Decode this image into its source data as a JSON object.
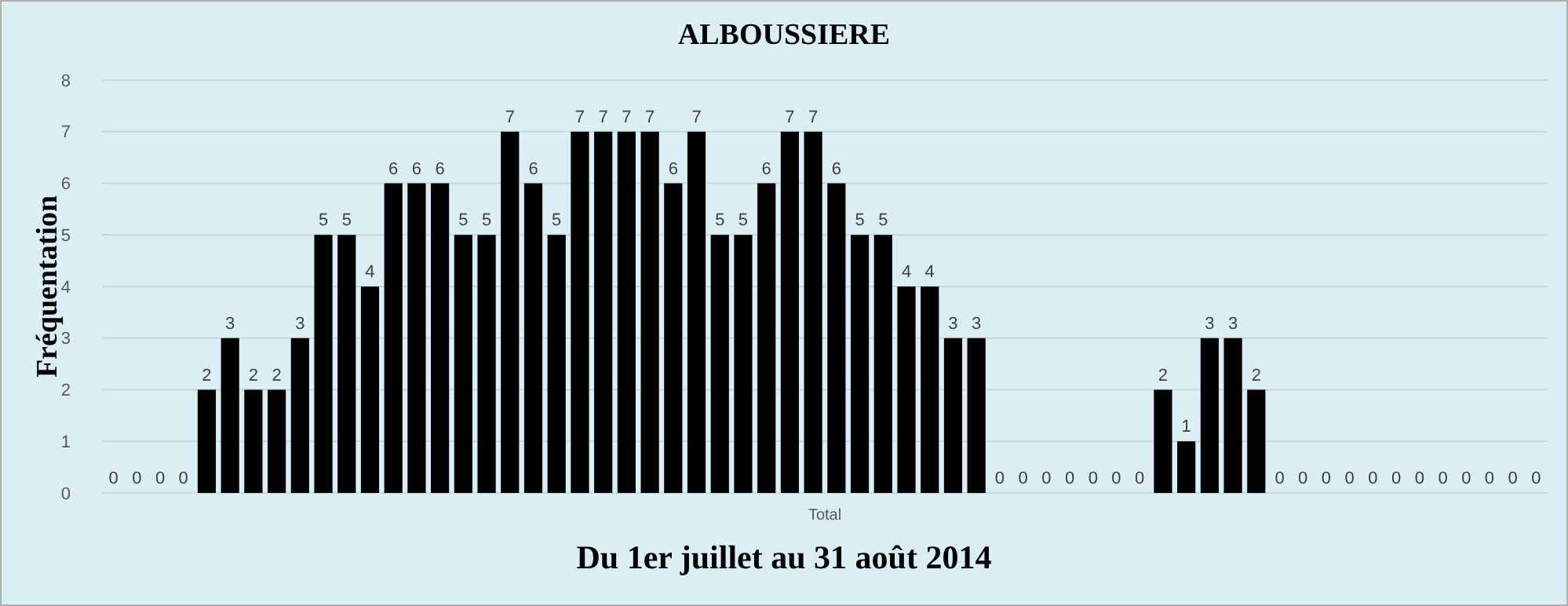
{
  "chart_data": {
    "type": "bar",
    "title": "ALBOUSSIERE",
    "xlabel": "Du 1er juillet au 31 août 2014",
    "ylabel": "Fréquentation",
    "categories": [
      null,
      null,
      null,
      null,
      null,
      null,
      null,
      null,
      null,
      null,
      null,
      null,
      null,
      null,
      null,
      null,
      null,
      null,
      null,
      null,
      null,
      null,
      null,
      null,
      null,
      null,
      null,
      null,
      null,
      null,
      null,
      null,
      null,
      null,
      null,
      null,
      null,
      null,
      null,
      null,
      null,
      null,
      null,
      null,
      null,
      null,
      null,
      null,
      null,
      null,
      null,
      null,
      null,
      null,
      null,
      null,
      null,
      null,
      null,
      null,
      null,
      null
    ],
    "values": [
      0,
      0,
      0,
      0,
      2,
      3,
      2,
      2,
      3,
      5,
      5,
      4,
      6,
      6,
      6,
      5,
      5,
      7,
      6,
      5,
      7,
      7,
      7,
      7,
      6,
      7,
      5,
      5,
      6,
      7,
      7,
      6,
      5,
      5,
      4,
      4,
      3,
      3,
      0,
      0,
      0,
      0,
      0,
      0,
      0,
      2,
      1,
      3,
      3,
      2,
      0,
      0,
      0,
      0,
      0,
      0,
      0,
      0,
      0,
      0,
      0,
      0
    ],
    "color": "#000000",
    "ylim": [
      0,
      8
    ],
    "yticks": [
      0,
      1,
      2,
      3,
      4,
      5,
      6,
      7,
      8
    ],
    "grid": "y",
    "data_labels": true,
    "annotations": [
      "Total"
    ]
  }
}
